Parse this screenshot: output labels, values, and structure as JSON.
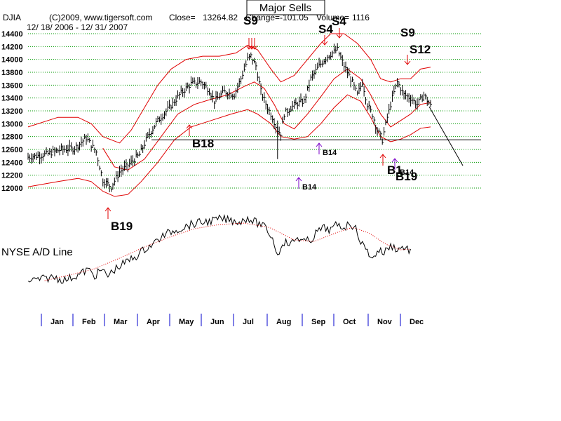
{
  "header": {
    "symbol": "DJIA",
    "copyright": "(C)2009, www.tigersoft.com",
    "close_label": "Close=",
    "close_value": "13264.82",
    "change_label": "Change=-101.05",
    "volume_label": "Volume=",
    "volume_value": "1116",
    "date_range": "12/ 18/ 2006 - 12/ 31/ 2007"
  },
  "title_box": "Major Sells",
  "colors": {
    "price": "#000000",
    "bands": "#e00000",
    "grid": "#009900",
    "sell_arrow": "#e00000",
    "buy_arrow": "#e00000",
    "b14_arrow": "#7a00c8",
    "month_tick": "#0000cc",
    "ad_line": "#000000",
    "ad_ma": "#e00000"
  },
  "chart_data": {
    "type": "line",
    "title": "",
    "yticks": [
      12000,
      12200,
      12400,
      12600,
      12800,
      13000,
      13200,
      13400,
      13600,
      13800,
      14000,
      14200,
      14400
    ],
    "ylim": [
      11900,
      14450
    ],
    "grid": true,
    "months": [
      "Jan",
      "Feb",
      "Mar",
      "Apr",
      "May",
      "Jun",
      "Jul",
      "Aug",
      "Sep",
      "Oct",
      "Nov",
      "Dec"
    ],
    "price_anchors": [
      [
        0,
        12480
      ],
      [
        10,
        12520
      ],
      [
        20,
        12600
      ],
      [
        28,
        12620
      ],
      [
        35,
        12780
      ],
      [
        41,
        12560
      ],
      [
        45,
        12120
      ],
      [
        50,
        12020
      ],
      [
        55,
        12250
      ],
      [
        60,
        12350
      ],
      [
        67,
        12520
      ],
      [
        72,
        12800
      ],
      [
        78,
        13050
      ],
      [
        85,
        13250
      ],
      [
        92,
        13480
      ],
      [
        98,
        13620
      ],
      [
        104,
        13650
      ],
      [
        109,
        13520
      ],
      [
        112,
        13350
      ],
      [
        118,
        13500
      ],
      [
        124,
        13450
      ],
      [
        128,
        13700
      ],
      [
        132,
        14000
      ],
      [
        134,
        14050
      ],
      [
        137,
        13900
      ],
      [
        140,
        13500
      ],
      [
        144,
        13250
      ],
      [
        147,
        13100
      ],
      [
        150,
        12900
      ],
      [
        152,
        12850
      ],
      [
        154,
        13150
      ],
      [
        158,
        13250
      ],
      [
        162,
        13320
      ],
      [
        166,
        13350
      ],
      [
        170,
        13700
      ],
      [
        175,
        13900
      ],
      [
        180,
        14050
      ],
      [
        186,
        14150
      ],
      [
        190,
        13900
      ],
      [
        194,
        13700
      ],
      [
        198,
        13450
      ],
      [
        201,
        13650
      ],
      [
        204,
        13300
      ],
      [
        207,
        13150
      ],
      [
        210,
        12900
      ],
      [
        213,
        12750
      ],
      [
        216,
        13100
      ],
      [
        219,
        13400
      ],
      [
        222,
        13650
      ],
      [
        226,
        13450
      ],
      [
        230,
        13400
      ],
      [
        234,
        13300
      ],
      [
        238,
        13450
      ],
      [
        242,
        13280
      ]
    ],
    "upper_band": [
      [
        0,
        12950
      ],
      [
        18,
        13100
      ],
      [
        30,
        13100
      ],
      [
        38,
        13000
      ],
      [
        45,
        12800
      ],
      [
        55,
        12700
      ],
      [
        62,
        12900
      ],
      [
        70,
        13250
      ],
      [
        78,
        13600
      ],
      [
        86,
        13850
      ],
      [
        95,
        14000
      ],
      [
        105,
        14050
      ],
      [
        115,
        14050
      ],
      [
        125,
        14100
      ],
      [
        132,
        14220
      ],
      [
        138,
        14150
      ],
      [
        146,
        13850
      ],
      [
        152,
        13650
      ],
      [
        160,
        13750
      ],
      [
        168,
        14000
      ],
      [
        176,
        14250
      ],
      [
        182,
        14400
      ],
      [
        190,
        14400
      ],
      [
        198,
        14250
      ],
      [
        206,
        14000
      ],
      [
        212,
        13700
      ],
      [
        218,
        13650
      ],
      [
        224,
        13700
      ],
      [
        230,
        13700
      ],
      [
        236,
        13850
      ],
      [
        242,
        13880
      ]
    ],
    "lower_band": [
      [
        0,
        12020
      ],
      [
        18,
        12100
      ],
      [
        30,
        12150
      ],
      [
        38,
        12100
      ],
      [
        45,
        11950
      ],
      [
        52,
        11870
      ],
      [
        60,
        11900
      ],
      [
        68,
        12100
      ],
      [
        78,
        12400
      ],
      [
        88,
        12750
      ],
      [
        98,
        12950
      ],
      [
        110,
        13050
      ],
      [
        122,
        13150
      ],
      [
        132,
        13220
      ],
      [
        138,
        13150
      ],
      [
        146,
        13000
      ],
      [
        152,
        12800
      ],
      [
        160,
        12760
      ],
      [
        168,
        12800
      ],
      [
        176,
        13000
      ],
      [
        184,
        13250
      ],
      [
        192,
        13450
      ],
      [
        200,
        13350
      ],
      [
        206,
        13100
      ],
      [
        212,
        12800
      ],
      [
        218,
        12720
      ],
      [
        224,
        12760
      ],
      [
        230,
        12830
      ],
      [
        236,
        12930
      ],
      [
        242,
        12950
      ]
    ],
    "mid_band": [
      [
        45,
        12620
      ],
      [
        52,
        12330
      ],
      [
        60,
        12280
      ],
      [
        70,
        12450
      ],
      [
        80,
        12800
      ],
      [
        90,
        13150
      ],
      [
        100,
        13300
      ],
      [
        110,
        13380
      ],
      [
        120,
        13450
      ],
      [
        130,
        13580
      ],
      [
        136,
        13650
      ],
      [
        142,
        13550
      ],
      [
        148,
        13300
      ],
      [
        154,
        13000
      ],
      [
        160,
        12920
      ],
      [
        168,
        13150
      ],
      [
        176,
        13420
      ],
      [
        184,
        13700
      ],
      [
        192,
        13850
      ],
      [
        200,
        13700
      ],
      [
        206,
        13450
      ],
      [
        212,
        13150
      ],
      [
        218,
        12950
      ],
      [
        224,
        13050
      ],
      [
        230,
        13150
      ],
      [
        236,
        13300
      ],
      [
        242,
        13330
      ]
    ],
    "horizontal_line": 12750,
    "annotations": [
      {
        "label": "Major Sells",
        "type": "box"
      },
      {
        "label": "S9",
        "kind": "sell",
        "day": 134
      },
      {
        "label": "S4",
        "kind": "sell",
        "day": 178
      },
      {
        "label": "S4",
        "kind": "sell",
        "day": 186
      },
      {
        "label": "S9",
        "kind": "sell",
        "day": 218
      },
      {
        "label": "S12",
        "kind": "sell",
        "day": 222
      },
      {
        "label": "B18",
        "kind": "buy",
        "day": 92
      },
      {
        "label": "B19",
        "kind": "buy",
        "day": 44
      },
      {
        "label": "B14",
        "kind": "buy",
        "day": 174
      },
      {
        "label": "B14",
        "kind": "buy",
        "day": 160
      },
      {
        "label": "B1",
        "kind": "buy",
        "day": 206
      },
      {
        "label": "B14",
        "kind": "buy",
        "day": 212
      },
      {
        "label": "B19",
        "kind": "buy",
        "day": 210
      }
    ]
  },
  "ad_line": {
    "label": "NYSE A/D Line",
    "line_anchors": [
      [
        0,
        100
      ],
      [
        8,
        98
      ],
      [
        15,
        95
      ],
      [
        22,
        99
      ],
      [
        30,
        92
      ],
      [
        36,
        84
      ],
      [
        40,
        93
      ],
      [
        44,
        85
      ],
      [
        48,
        93
      ],
      [
        52,
        84
      ],
      [
        56,
        78
      ],
      [
        60,
        72
      ],
      [
        65,
        65
      ],
      [
        70,
        55
      ],
      [
        75,
        48
      ],
      [
        80,
        38
      ],
      [
        86,
        30
      ],
      [
        92,
        25
      ],
      [
        98,
        20
      ],
      [
        104,
        17
      ],
      [
        110,
        15
      ],
      [
        116,
        12
      ],
      [
        122,
        14
      ],
      [
        128,
        16
      ],
      [
        132,
        10
      ],
      [
        136,
        16
      ],
      [
        140,
        20
      ],
      [
        144,
        28
      ],
      [
        148,
        45
      ],
      [
        150,
        66
      ],
      [
        153,
        44
      ],
      [
        158,
        48
      ],
      [
        162,
        38
      ],
      [
        166,
        45
      ],
      [
        170,
        42
      ],
      [
        174,
        30
      ],
      [
        178,
        25
      ],
      [
        182,
        28
      ],
      [
        186,
        20
      ],
      [
        190,
        24
      ],
      [
        194,
        18
      ],
      [
        198,
        30
      ],
      [
        200,
        45
      ],
      [
        203,
        55
      ],
      [
        206,
        64
      ],
      [
        208,
        68
      ],
      [
        210,
        56
      ],
      [
        214,
        60
      ],
      [
        218,
        50
      ],
      [
        222,
        55
      ],
      [
        226,
        52
      ],
      [
        230,
        58
      ]
    ],
    "ma_anchors": [
      [
        10,
        100
      ],
      [
        25,
        92
      ],
      [
        40,
        83
      ],
      [
        55,
        68
      ],
      [
        70,
        52
      ],
      [
        85,
        38
      ],
      [
        100,
        26
      ],
      [
        115,
        20
      ],
      [
        130,
        18
      ],
      [
        145,
        24
      ],
      [
        160,
        42
      ],
      [
        172,
        44
      ],
      [
        185,
        32
      ],
      [
        195,
        24
      ],
      [
        205,
        32
      ],
      [
        215,
        48
      ],
      [
        224,
        56
      ],
      [
        230,
        55
      ]
    ]
  }
}
